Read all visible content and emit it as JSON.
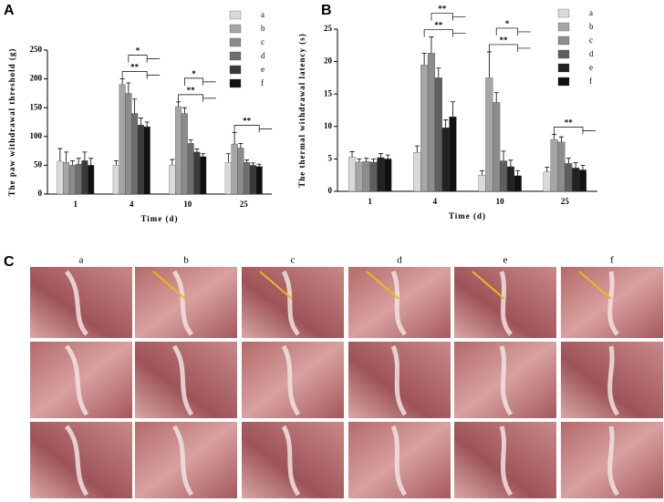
{
  "chart_data": [
    {
      "type": "bar",
      "panel": "A",
      "ylabel": "The paw withdrawal threshold (g)",
      "xlabel": "Time (d)",
      "categories": [
        "1",
        "4",
        "10",
        "25"
      ],
      "ylim": [
        0,
        250
      ],
      "yticks": [
        0,
        50,
        100,
        150,
        200,
        250
      ],
      "legend": "top-right",
      "series": [
        {
          "name": "a",
          "color": "#d9d9d9",
          "values": [
            57,
            50,
            50,
            55
          ],
          "errors": [
            22,
            8,
            10,
            15
          ]
        },
        {
          "name": "b",
          "color": "#a6a6a6",
          "values": [
            55,
            190,
            152,
            87
          ],
          "errors": [
            18,
            10,
            8,
            20
          ]
        },
        {
          "name": "c",
          "color": "#8c8c8c",
          "values": [
            50,
            175,
            140,
            80
          ],
          "errors": [
            8,
            18,
            10,
            8
          ]
        },
        {
          "name": "d",
          "color": "#6e6e6e",
          "values": [
            52,
            140,
            88,
            55
          ],
          "errors": [
            10,
            25,
            6,
            4
          ]
        },
        {
          "name": "e",
          "color": "#3a3a3a",
          "values": [
            58,
            120,
            73,
            50
          ],
          "errors": [
            15,
            12,
            5,
            4
          ]
        },
        {
          "name": "f",
          "color": "#111111",
          "values": [
            50,
            117,
            65,
            48
          ],
          "errors": [
            12,
            8,
            5,
            4
          ]
        }
      ],
      "annotations": [
        {
          "text": "**",
          "category": "4"
        },
        {
          "text": "*",
          "category": "4"
        },
        {
          "text": "**",
          "category": "10"
        },
        {
          "text": "*",
          "category": "10"
        },
        {
          "text": "**",
          "category": "25"
        }
      ]
    },
    {
      "type": "bar",
      "panel": "B",
      "ylabel": "The thermal withdrawal latency (s)",
      "xlabel": "Time (d)",
      "categories": [
        "1",
        "4",
        "10",
        "25"
      ],
      "ylim": [
        0,
        25
      ],
      "yticks": [
        0,
        5,
        10,
        15,
        20,
        25
      ],
      "legend": "top-right",
      "series": [
        {
          "name": "a",
          "color": "#d9d9d9",
          "values": [
            5.3,
            6,
            2.5,
            3
          ],
          "errors": [
            0.8,
            1,
            0.7,
            0.7
          ]
        },
        {
          "name": "b",
          "color": "#a6a6a6",
          "values": [
            4.5,
            19.5,
            17.5,
            8
          ],
          "errors": [
            0.5,
            1.8,
            4,
            0.8
          ]
        },
        {
          "name": "c",
          "color": "#8c8c8c",
          "values": [
            4.6,
            21.3,
            13.7,
            7.6
          ],
          "errors": [
            0.5,
            2.5,
            1.5,
            0.8
          ]
        },
        {
          "name": "d",
          "color": "#5e5e5e",
          "values": [
            4.5,
            17.5,
            4.7,
            4.3
          ],
          "errors": [
            0.5,
            1.5,
            1.5,
            0.8
          ]
        },
        {
          "name": "e",
          "color": "#222222",
          "values": [
            5.2,
            9.8,
            3.8,
            3.6
          ],
          "errors": [
            0.6,
            1.2,
            1,
            0.8
          ]
        },
        {
          "name": "f",
          "color": "#111111",
          "values": [
            5.0,
            11.5,
            2.4,
            3.3
          ],
          "errors": [
            0.6,
            2.3,
            0.8,
            0.7
          ]
        }
      ],
      "annotations": [
        {
          "text": "**",
          "category": "4"
        },
        {
          "text": "**",
          "category": "4"
        },
        {
          "text": "**",
          "category": "10"
        },
        {
          "text": "*",
          "category": "10"
        },
        {
          "text": "**",
          "category": "25"
        }
      ]
    }
  ],
  "photo_panel": {
    "panel": "C",
    "columns": [
      "a",
      "b",
      "c",
      "d",
      "e",
      "f"
    ]
  }
}
